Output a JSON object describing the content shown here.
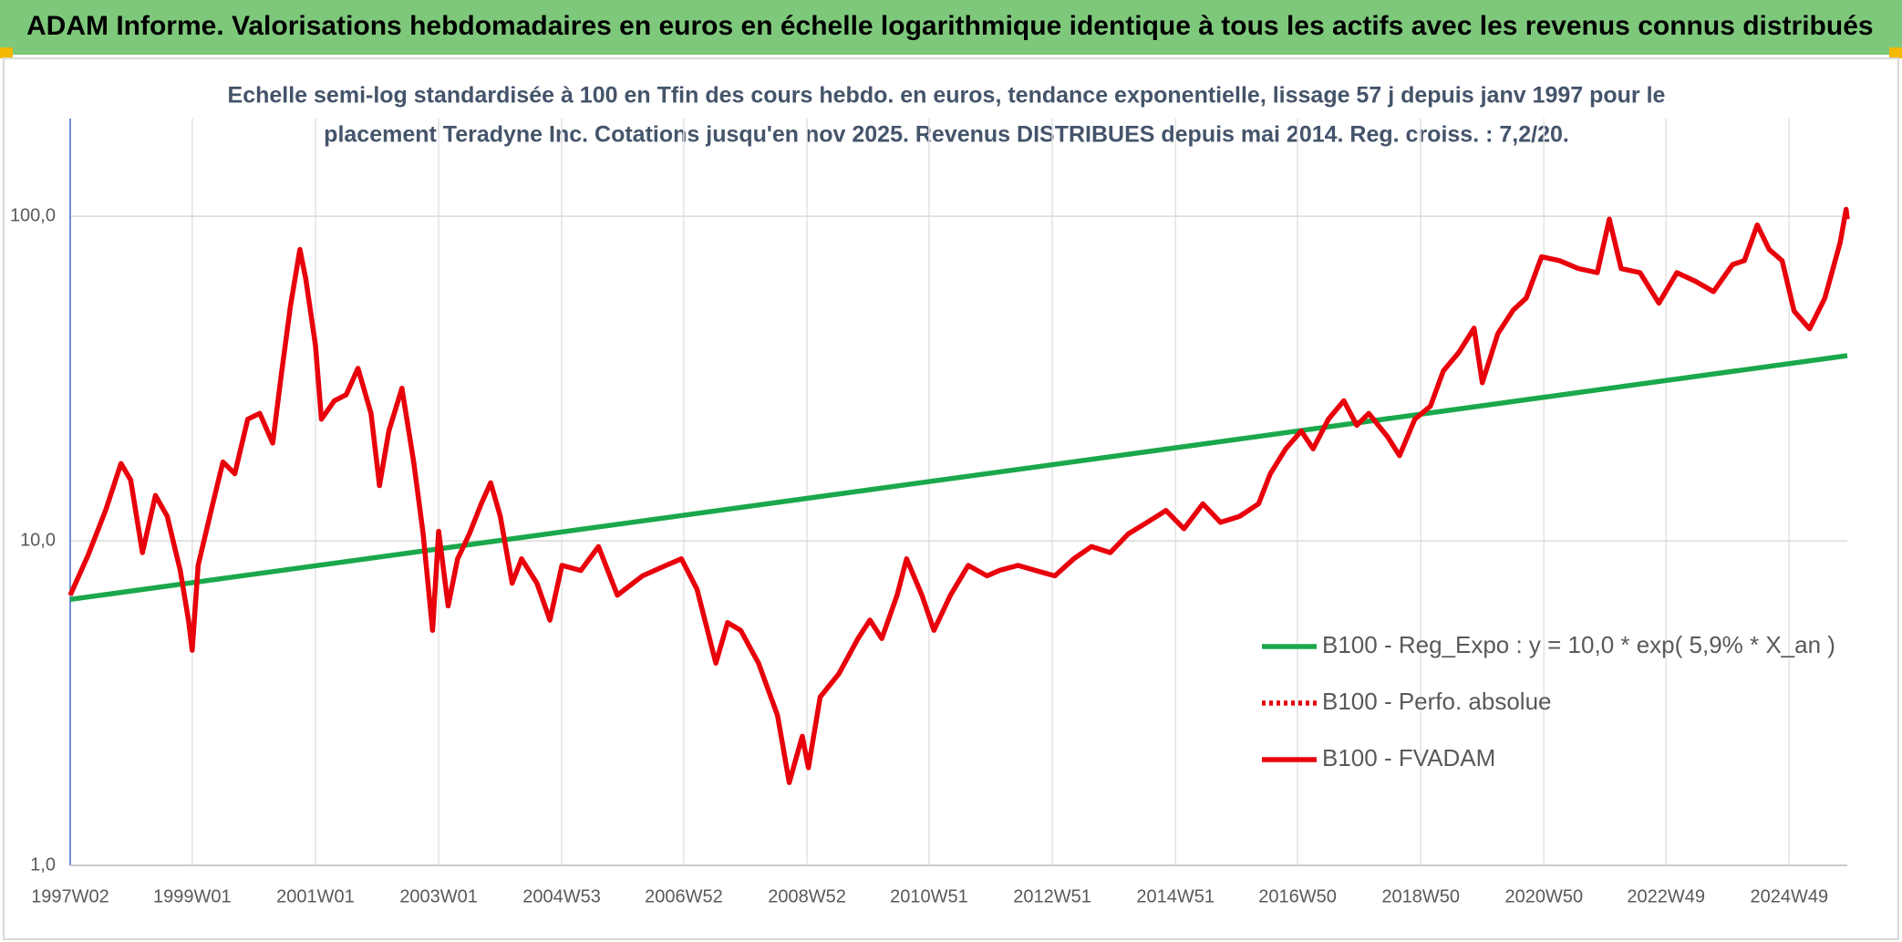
{
  "chart_data": {
    "type": "line",
    "title": "ADAM Informe. Valorisations hebdomadaires en euros en échelle logarithmique identique à tous les actifs avec les revenus connus distribués",
    "subtitle": [
      "Echelle semi-log standardisée à 100 en Tfin des cours hebdo. en euros, tendance exponentielle, lissage 57 j depuis janv 1997 pour le",
      "placement Teradyne Inc. Cotations jusqu'en nov 2025. Revenus DISTRIBUES depuis mai 2014. Reg. croiss. : 7,2/20."
    ],
    "log_scale_y": true,
    "grid": true,
    "legend_position": "right",
    "xlim": [
      "1997W02",
      "2025W46"
    ],
    "xticks": [
      "1997W02",
      "1999W01",
      "2001W01",
      "2003W01",
      "2004W53",
      "2006W52",
      "2008W52",
      "2010W51",
      "2012W51",
      "2014W51",
      "2016W50",
      "2018W50",
      "2020W50",
      "2022W49",
      "2024W49"
    ],
    "ylim": [
      1,
      200
    ],
    "yticks": [
      {
        "value": 1,
        "label": "1,0"
      },
      {
        "value": 10,
        "label": "10,0"
      },
      {
        "value": 100,
        "label": "100,0"
      }
    ],
    "series": [
      {
        "name": "B100 - Reg_Expo : y = 10,0 * exp( 5,9% *  X_an )",
        "color": "#1aa84b",
        "style": "solid",
        "x": [
          "1997W02",
          "2025W46"
        ],
        "values": [
          6.6,
          37.2
        ]
      },
      {
        "name": "B100 - Perfo. absolue",
        "color": "#e8000b",
        "style": "dotted"
      },
      {
        "name": "B100 - FVADAM",
        "color": "#e8000b",
        "style": "solid",
        "x": [
          "1997W02",
          "1997W17",
          "1997W32",
          "1997W45",
          "1998W01",
          "1998W11",
          "1998W22",
          "1998W32",
          "1998W43",
          "1998W50",
          "1999W01",
          "1999W06",
          "1999W17",
          "1999W27",
          "1999W37",
          "1999W48",
          "2000W06",
          "2000W17",
          "2000W24",
          "2000W32",
          "2000W40",
          "2000W45",
          "2001W01",
          "2001W06",
          "2001W17",
          "2001W27",
          "2001W37",
          "2001W48",
          "2002W03",
          "2002W11",
          "2002W22",
          "2002W32",
          "2002W40",
          "2002W48",
          "2003W01",
          "2003W09",
          "2003W17",
          "2003W27",
          "2003W37",
          "2003W45",
          "2004W01",
          "2004W11",
          "2004W19",
          "2004W32",
          "2004W43",
          "2005W01",
          "2005W17",
          "2005W32",
          "2005W48",
          "2006W17",
          "2006W37",
          "2006W50",
          "2007W11",
          "2007W27",
          "2007W37",
          "2007W48",
          "2008W11",
          "2008W27",
          "2008W37",
          "2008W48",
          "2009W01",
          "2009W11",
          "2009W27",
          "2009W43",
          "2010W01",
          "2010W11",
          "2010W24",
          "2010W32",
          "2010W45",
          "2011W03",
          "2011W17",
          "2011W32",
          "2011W48",
          "2012W06",
          "2012W22",
          "2012W37",
          "2013W01",
          "2013W17",
          "2013W32",
          "2013W48",
          "2014W11",
          "2014W27",
          "2014W43",
          "2015W06",
          "2015W22",
          "2015W37",
          "2016W01",
          "2016W17",
          "2016W27",
          "2016W40",
          "2017W01",
          "2017W11",
          "2017W24",
          "2017W37",
          "2017W48",
          "2018W06",
          "2018W22",
          "2018W32",
          "2018W45",
          "2019W06",
          "2019W17",
          "2019W30",
          "2019W43",
          "2019W50",
          "2020W11",
          "2020W24",
          "2020W35",
          "2020W48",
          "2021W11",
          "2021W27",
          "2021W43",
          "2022W01",
          "2022W11",
          "2022W27",
          "2022W43",
          "2023W06",
          "2023W22",
          "2023W37",
          "2024W01",
          "2024W11",
          "2024W22",
          "2024W32",
          "2024W43",
          "2025W01",
          "2025W14",
          "2025W27",
          "2025W40",
          "2025W45",
          "2025W46"
        ],
        "values": [
          6.8,
          9.0,
          12.4,
          17.3,
          15.4,
          9.2,
          13.8,
          11.9,
          8.1,
          5.7,
          4.6,
          8.4,
          12.4,
          17.5,
          16.1,
          23.7,
          24.7,
          20,
          32,
          53,
          79,
          64,
          40,
          23.7,
          27,
          28.2,
          34,
          24.7,
          14.8,
          21.8,
          29.5,
          17.5,
          10.5,
          5.3,
          10.7,
          6.3,
          8.8,
          10.5,
          13,
          15.1,
          11.9,
          7.4,
          8.8,
          7.4,
          5.7,
          8.4,
          8.1,
          9.6,
          6.8,
          7.8,
          8.4,
          8.8,
          7.1,
          4.2,
          5.6,
          5.3,
          4.2,
          2.9,
          1.8,
          2.5,
          2.0,
          3.3,
          3.9,
          5.0,
          5.7,
          5.0,
          6.8,
          8.8,
          6.8,
          5.3,
          6.8,
          8.4,
          7.8,
          8.1,
          8.4,
          8.1,
          7.8,
          8.8,
          9.6,
          9.2,
          10.5,
          11.4,
          12.4,
          10.9,
          13,
          11.4,
          11.9,
          13,
          16.1,
          19.2,
          21.8,
          19.2,
          23.7,
          27,
          22.7,
          24.7,
          20.9,
          18.3,
          23.7,
          26,
          33.4,
          38,
          45.2,
          30.7,
          43.5,
          51.4,
          56,
          75,
          73,
          69,
          67,
          98,
          69,
          67,
          54,
          67,
          63,
          58.6,
          71,
          73,
          94,
          79,
          73,
          51,
          45,
          56,
          83,
          105,
          98
        ]
      }
    ]
  }
}
